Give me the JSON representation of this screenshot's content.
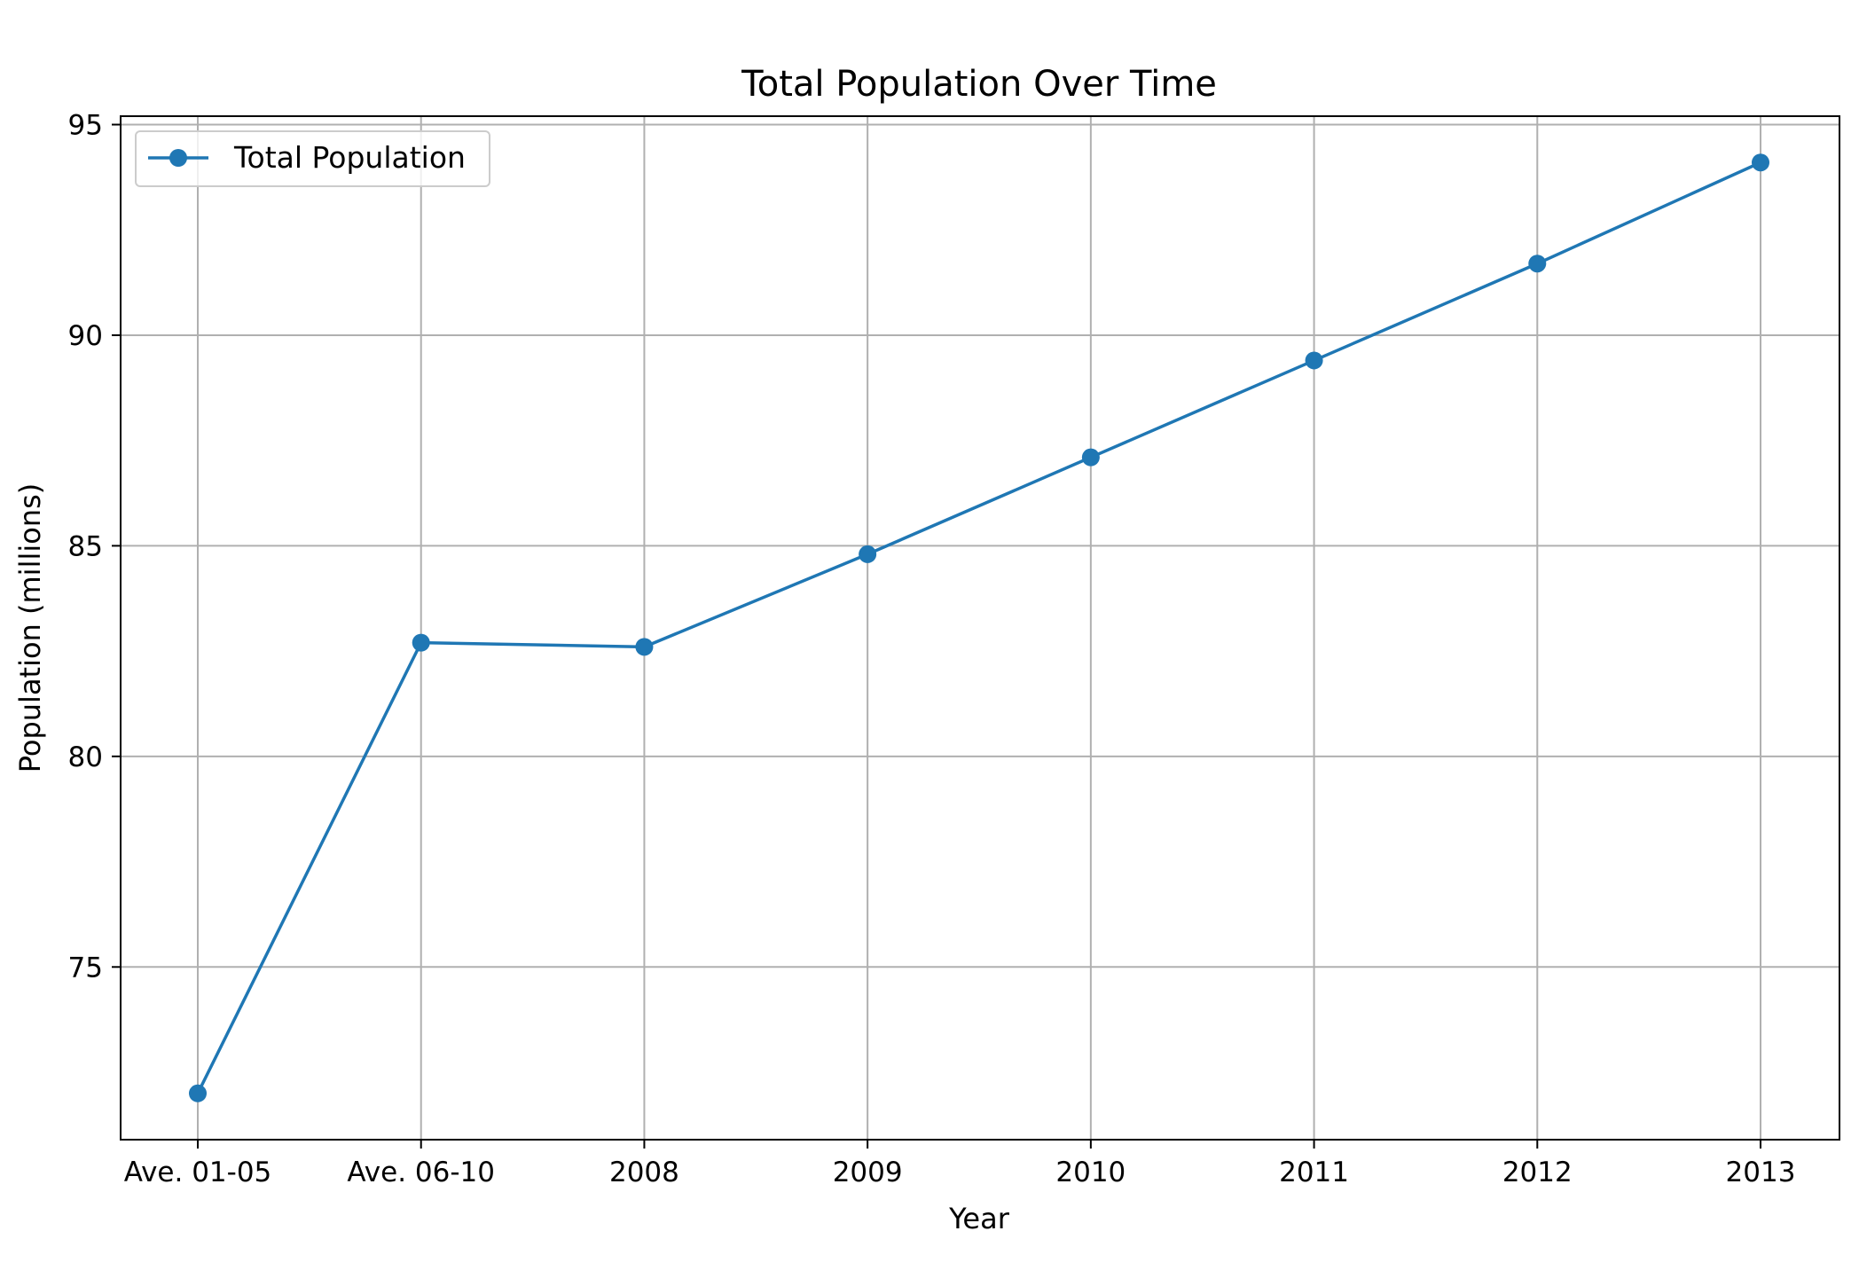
{
  "chart_data": {
    "type": "line",
    "title": "Total Population Over Time",
    "xlabel": "Year",
    "ylabel": "Population (millions)",
    "categories": [
      "Ave. 01-05",
      "Ave. 06-10",
      "2008",
      "2009",
      "2010",
      "2011",
      "2012",
      "2013"
    ],
    "series": [
      {
        "name": "Total Population",
        "values": [
          72.0,
          82.7,
          82.6,
          84.8,
          87.1,
          89.4,
          91.7,
          94.1
        ],
        "color": "#1f77b4"
      }
    ],
    "ylim": [
      70.9,
      95.2
    ],
    "yticks": [
      75,
      80,
      85,
      90,
      95
    ],
    "grid": true,
    "legend_position": "top-left"
  }
}
